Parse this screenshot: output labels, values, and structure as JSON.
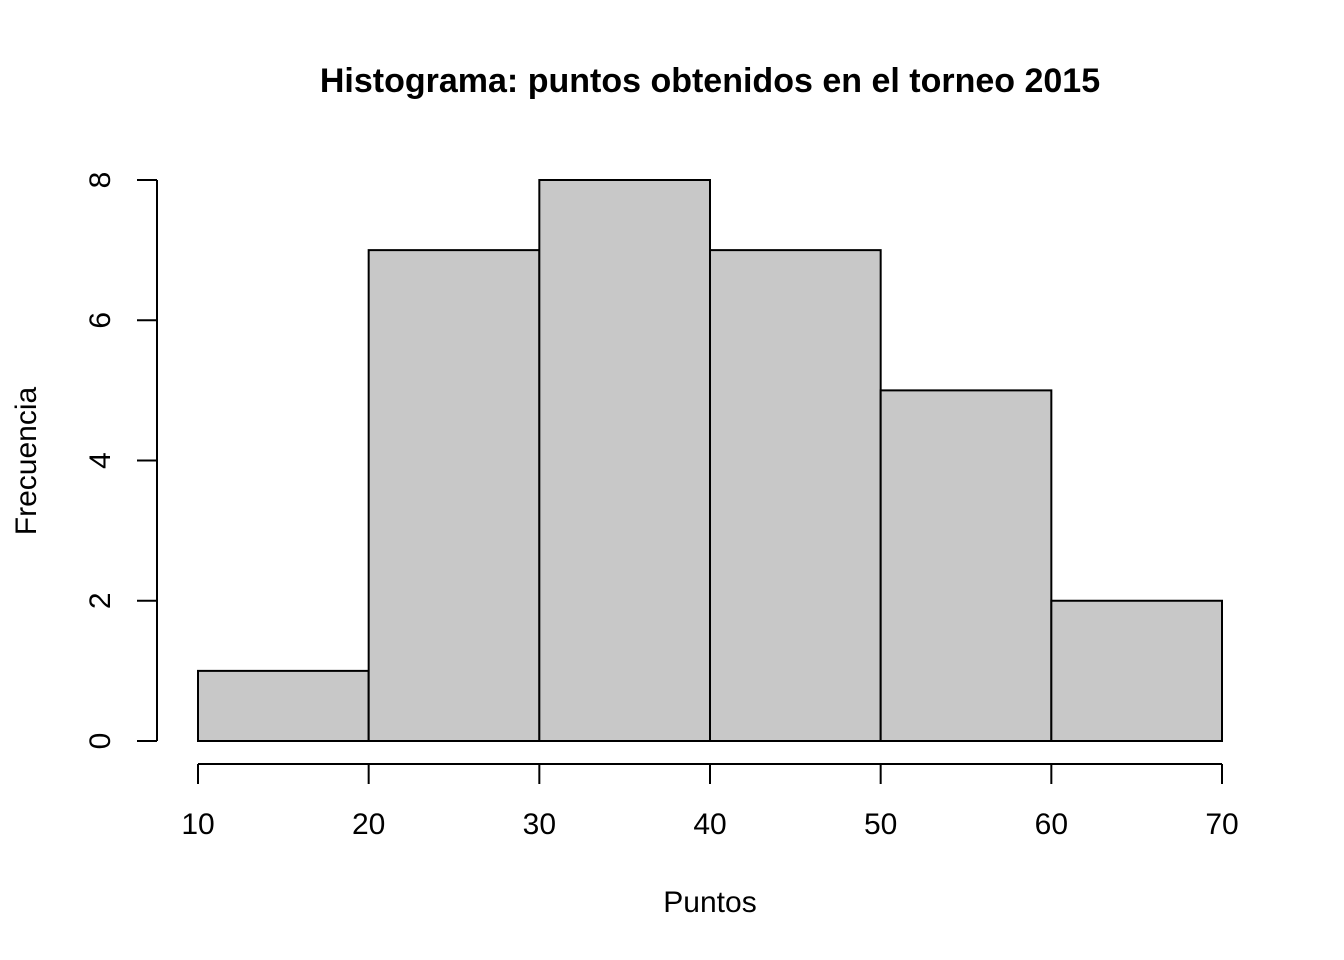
{
  "chart_data": {
    "type": "bar",
    "title": "Histograma: puntos obtenidos en el torneo 2015",
    "xlabel": "Puntos",
    "ylabel": "Frecuencia",
    "bins": [
      {
        "from": 10,
        "to": 20,
        "count": 1
      },
      {
        "from": 20,
        "to": 30,
        "count": 7
      },
      {
        "from": 30,
        "to": 40,
        "count": 8
      },
      {
        "from": 40,
        "to": 50,
        "count": 7
      },
      {
        "from": 50,
        "to": 60,
        "count": 5
      },
      {
        "from": 60,
        "to": 70,
        "count": 2
      }
    ],
    "xlim": [
      10,
      70
    ],
    "ylim": [
      0,
      8
    ],
    "x_ticks": [
      10,
      20,
      30,
      40,
      50,
      60,
      70
    ],
    "y_ticks": [
      0,
      2,
      4,
      6,
      8
    ],
    "bar_color": "#c8c8c8",
    "grid": false
  }
}
